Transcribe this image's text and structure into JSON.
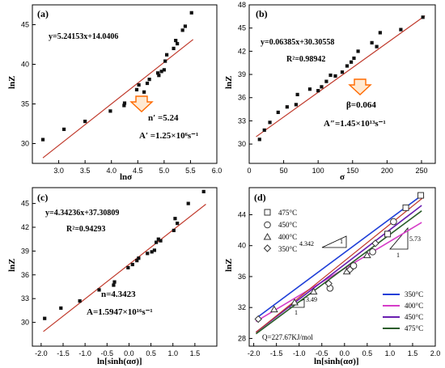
{
  "chart_data": [
    {
      "type": "scatter",
      "panel": "(a)",
      "xlabel": "lnσ",
      "ylabel": "lnZ",
      "xlim": [
        2.5,
        6.0
      ],
      "ylim": [
        27.5,
        47.5
      ],
      "xticks": [
        "3.0",
        "3.5",
        "4.0",
        "4.5",
        "5.0",
        "5.5",
        "6.0"
      ],
      "yticks": [
        "30",
        "35",
        "40",
        "45"
      ],
      "equation": "y=5.24153x+14.0406",
      "annotation_1": "n′ =5.24",
      "annotation_2": "A′ =1.25×10⁶s⁻¹",
      "x": [
        2.7,
        3.1,
        3.5,
        3.98,
        4.24,
        4.25,
        4.48,
        4.52,
        4.62,
        4.68,
        4.72,
        4.88,
        4.9,
        4.95,
        5.0,
        5.02,
        5.05,
        5.18,
        5.22,
        5.25,
        5.35,
        5.4,
        5.52
      ],
      "y": [
        30.5,
        31.8,
        32.8,
        34.1,
        34.8,
        35.1,
        36.8,
        37.4,
        36.5,
        37.6,
        38.1,
        38.9,
        38.6,
        39.1,
        39.3,
        40.4,
        41.2,
        42.0,
        43.0,
        42.6,
        44.3,
        44.8,
        46.5
      ],
      "fit": {
        "slope": 5.24153,
        "intercept": 14.0406,
        "x_from": 2.7,
        "x_to": 5.55
      }
    },
    {
      "type": "scatter",
      "panel": "(b)",
      "xlabel": "σ",
      "ylabel": "lnZ",
      "xlim": [
        0,
        270
      ],
      "ylim": [
        27.5,
        48.0
      ],
      "xticks": [
        "0",
        "50",
        "100",
        "150",
        "200",
        "250"
      ],
      "yticks": [
        "30",
        "33",
        "36",
        "39",
        "42",
        "45",
        "48"
      ],
      "equation": "y=0.06385x+30.30558",
      "r2": "R²=0.98942",
      "annotation_1": "β=0.064",
      "annotation_2": "A″=1.45×10¹³s⁻¹",
      "x": [
        15,
        22,
        30,
        42,
        55,
        68,
        70,
        88,
        100,
        105,
        112,
        118,
        125,
        135,
        142,
        148,
        152,
        158,
        178,
        185,
        190,
        220,
        252
      ],
      "y": [
        30.6,
        31.8,
        32.8,
        34.1,
        34.8,
        35.1,
        36.4,
        37.1,
        36.9,
        37.4,
        38.1,
        38.9,
        38.8,
        39.3,
        40.1,
        40.6,
        41.1,
        42.0,
        43.1,
        42.6,
        44.4,
        44.8,
        46.4
      ],
      "fit": {
        "slope": 0.06385,
        "intercept": 30.30558,
        "x_from": 10,
        "x_to": 255
      }
    },
    {
      "type": "scatter",
      "panel": "(c)",
      "xlabel": "ln[sinh(ασ)]",
      "ylabel": "lnZ",
      "xlim": [
        -2.2,
        2.0
      ],
      "ylim": [
        27.0,
        47.0
      ],
      "xticks": [
        "-2.0",
        "-1.5",
        "-1.0",
        "-0.5",
        "0.0",
        "0.5",
        "1.0",
        "1.5"
      ],
      "yticks": [
        "30",
        "33",
        "36",
        "39",
        "42",
        "45"
      ],
      "equation": "y=4.34236x+37.30809",
      "r2": "R²=0.94293",
      "annotation_1": "n=4.3423",
      "annotation_2": "A=1.5947×10¹⁶s⁻¹",
      "x": [
        -1.92,
        -1.55,
        -1.12,
        -0.68,
        -0.35,
        -0.33,
        -0.02,
        0.08,
        0.18,
        0.22,
        0.42,
        0.52,
        0.58,
        0.62,
        0.67,
        0.72,
        1.02,
        1.05,
        1.1,
        1.35,
        1.7
      ],
      "y": [
        30.5,
        31.8,
        32.7,
        34.1,
        34.7,
        35.1,
        36.9,
        37.3,
        37.8,
        38.1,
        38.7,
        38.9,
        39.1,
        40.1,
        40.5,
        40.3,
        41.6,
        43.1,
        42.5,
        45.0,
        46.5
      ],
      "fit": {
        "slope": 4.34236,
        "intercept": 37.30809,
        "x_from": -1.95,
        "x_to": 1.75
      }
    },
    {
      "type": "scatter",
      "panel": "(d)",
      "xlabel": "ln[sinh(ασ)]",
      "ylabel": "lnZ",
      "xlim": [
        -2.1,
        2.0
      ],
      "ylim": [
        27.0,
        47.5
      ],
      "xticks": [
        "-2.0",
        "-1.5",
        "-1.0",
        "-0.5",
        "0.0",
        "0.5",
        "1.0",
        "1.5",
        "2.0"
      ],
      "yticks": [
        "28",
        "32",
        "36",
        "40",
        "44"
      ],
      "legend_markers": [
        "475°C",
        "450°C",
        "400°C",
        "350°C"
      ],
      "legend_lines": [
        "350°C",
        "400°C",
        "450°C",
        "475°C"
      ],
      "slope_labels": [
        "4.342",
        "5.73",
        "3.49"
      ],
      "q_label": "Q=227.67KJ/mol",
      "series": [
        {
          "name": "475°C",
          "marker": "square",
          "x": [
            0.95,
            1.35,
            1.68
          ],
          "y": [
            41.5,
            44.9,
            46.5
          ]
        },
        {
          "name": "450°C",
          "marker": "circle",
          "x": [
            -0.32,
            0.2,
            0.62,
            1.08
          ],
          "y": [
            34.5,
            37.4,
            39.2,
            43.1
          ]
        },
        {
          "name": "400°C",
          "marker": "triangle",
          "x": [
            -1.55,
            -1.1,
            -0.68,
            0.05,
            0.5
          ],
          "y": [
            31.8,
            32.7,
            34.1,
            36.7,
            38.8
          ]
        },
        {
          "name": "350°C",
          "marker": "diamond",
          "x": [
            -1.9,
            -0.35,
            0.12,
            0.68
          ],
          "y": [
            30.5,
            35.1,
            36.9,
            40.3
          ]
        }
      ],
      "lines": [
        {
          "name": "350°C",
          "color": "#1f3fd8",
          "x": [
            -1.95,
            1.7
          ],
          "y": [
            30.6,
            46.5
          ]
        },
        {
          "name": "400°C",
          "color": "#d63cc8",
          "x": [
            -1.95,
            1.7
          ],
          "y": [
            30.2,
            43.0
          ]
        },
        {
          "name": "450°C",
          "color": "#6a1fb0",
          "x": [
            -1.95,
            1.7
          ],
          "y": [
            28.8,
            45.2
          ]
        },
        {
          "name": "475°C",
          "color": "#2b5d2b",
          "x": [
            -1.95,
            1.7
          ],
          "y": [
            28.6,
            44.5
          ]
        }
      ],
      "fit_color": "#c0392b"
    }
  ],
  "colors": {
    "fit": "#c0392b",
    "point": "#111111",
    "arrow_fill": "#ffe9d2",
    "arrow_stroke": "#ff6a00"
  }
}
